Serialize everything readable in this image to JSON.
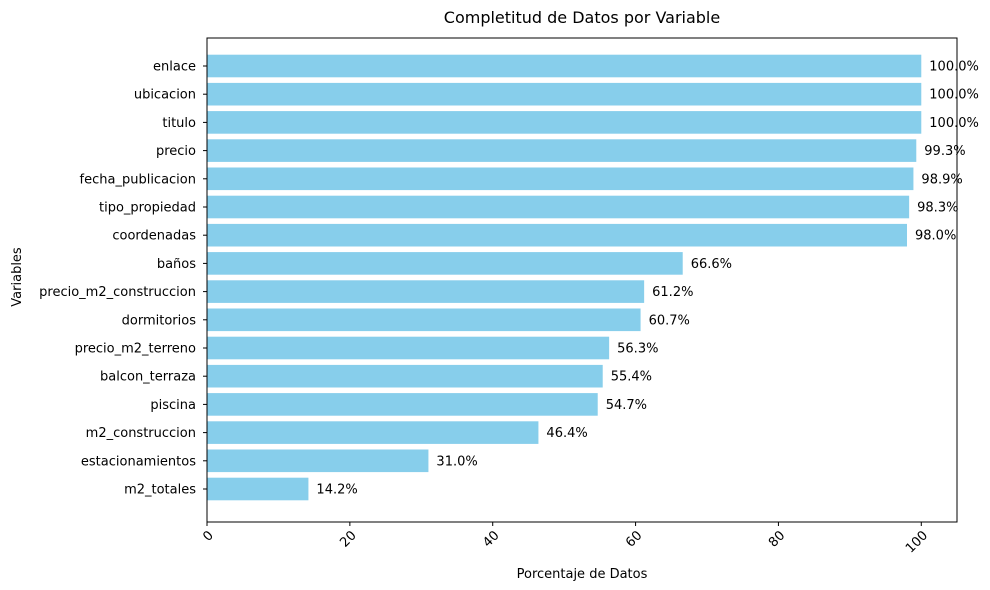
{
  "chart_data": {
    "type": "bar",
    "orientation": "horizontal",
    "title": "Completitud de Datos por Variable",
    "xlabel": "Porcentaje de Datos",
    "ylabel": "Variables",
    "xlim": [
      0,
      105
    ],
    "x_ticks": [
      0,
      20,
      40,
      60,
      80,
      100
    ],
    "x_tick_rotation_deg": 45,
    "grid": false,
    "bar_color": "#87ceeb",
    "categories": [
      "enlace",
      "ubicacion",
      "titulo",
      "precio",
      "fecha_publicacion",
      "tipo_propiedad",
      "coordenadas",
      "baños",
      "precio_m2_construccion",
      "dormitorios",
      "precio_m2_terreno",
      "balcon_terraza",
      "piscina",
      "m2_construccion",
      "estacionamientos",
      "m2_totales"
    ],
    "values": [
      100.0,
      100.0,
      100.0,
      99.3,
      98.9,
      98.3,
      98.0,
      66.6,
      61.2,
      60.7,
      56.3,
      55.4,
      54.7,
      46.4,
      31.0,
      14.2
    ],
    "data_labels": [
      "100.0%",
      "100.0%",
      "100.0%",
      "99.3%",
      "98.9%",
      "98.3%",
      "98.0%",
      "66.6%",
      "61.2%",
      "60.7%",
      "56.3%",
      "55.4%",
      "54.7%",
      "46.4%",
      "31.0%",
      "14.2%"
    ]
  }
}
